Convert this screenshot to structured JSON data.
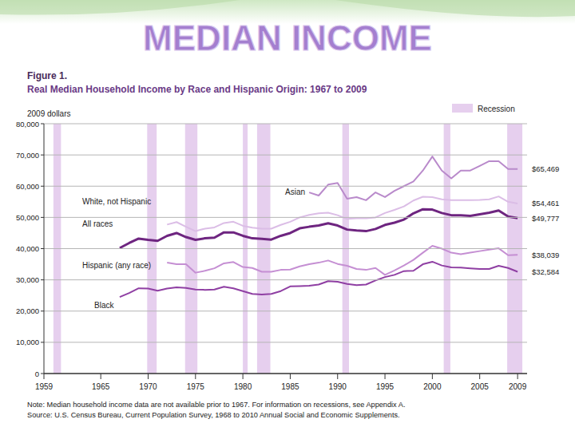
{
  "slide": {
    "title": "MEDIAN INCOME"
  },
  "chart_data": {
    "type": "line",
    "figure_label": "Figure 1.",
    "title": "Real Median Household Income by Race and Hispanic Origin: 1967 to 2009",
    "ylabel": "2009 dollars",
    "notes": [
      "Note: Median household income data are not available prior to 1967. For information on recessions, see Appendix A.",
      "Source: U.S. Census Bureau, Current Population Survey, 1968 to 2010 Annual Social and Economic Supplements."
    ],
    "grid": true,
    "legend": "upper right",
    "xlim": [
      1959,
      2010
    ],
    "xticks": [
      1959,
      1965,
      1970,
      1975,
      1980,
      1985,
      1990,
      1995,
      2000,
      2005,
      2009
    ],
    "ylim": [
      0,
      80000
    ],
    "yticks": [
      0,
      {
        "value": 10000,
        "label": "10,000"
      },
      {
        "value": 20000,
        "label": "20,000"
      },
      {
        "value": 30000,
        "label": "30,000"
      },
      {
        "value": 40000,
        "label": "40,000"
      },
      {
        "value": 50000,
        "label": "50,000"
      },
      {
        "value": 60000,
        "label": "60,000"
      },
      {
        "value": 70000,
        "label": "70,000"
      },
      {
        "value": 80000,
        "label": "80,000"
      }
    ],
    "recessions": {
      "label": "Recession",
      "color": "#e6cfee",
      "periods": [
        [
          1960,
          1960.8
        ],
        [
          1969.9,
          1970.9
        ],
        [
          1973.9,
          1975.2
        ],
        [
          1980,
          1980.5
        ],
        [
          1981.5,
          1982.9
        ],
        [
          1990.5,
          1991.2
        ],
        [
          2001.2,
          2001.9
        ],
        [
          2007.9,
          2009.5
        ]
      ]
    },
    "x": [
      1967,
      1968,
      1969,
      1970,
      1971,
      1972,
      1973,
      1974,
      1975,
      1976,
      1977,
      1978,
      1979,
      1980,
      1981,
      1982,
      1983,
      1984,
      1985,
      1986,
      1987,
      1988,
      1989,
      1990,
      1991,
      1992,
      1993,
      1994,
      1995,
      1996,
      1997,
      1998,
      1999,
      2000,
      2001,
      2002,
      2003,
      2004,
      2005,
      2006,
      2007,
      2008,
      2009
    ],
    "series": [
      {
        "name": "Asian",
        "color": "#b98acb",
        "end_label": "$65,469",
        "values": [
          null,
          null,
          null,
          null,
          null,
          null,
          null,
          null,
          null,
          null,
          null,
          null,
          null,
          null,
          null,
          null,
          null,
          null,
          null,
          null,
          58000,
          57000,
          60500,
          61000,
          56000,
          56500,
          55500,
          58000,
          56500,
          58500,
          60000,
          61500,
          65000,
          69500,
          65000,
          62500,
          65000,
          65000,
          66500,
          68000,
          68000,
          65500,
          65469
        ]
      },
      {
        "name": "White, not Hispanic",
        "color": "#dbbde6",
        "end_label": "$54,461",
        "values": [
          null,
          null,
          null,
          null,
          null,
          47700,
          48500,
          47000,
          45600,
          46400,
          46800,
          48200,
          48600,
          47300,
          46700,
          46400,
          46400,
          47600,
          48600,
          50000,
          50800,
          51300,
          51500,
          50700,
          49500,
          49700,
          49700,
          50000,
          51400,
          52400,
          53500,
          55400,
          56600,
          56500,
          55800,
          55500,
          55500,
          55500,
          55600,
          55800,
          56700,
          55000,
          54461
        ]
      },
      {
        "name": "All races",
        "color": "#6e2580",
        "end_label": "$49,777",
        "values": [
          40200,
          41800,
          43200,
          42800,
          42500,
          44100,
          45000,
          43700,
          42800,
          43300,
          43500,
          45200,
          45200,
          44100,
          43300,
          43100,
          42900,
          44100,
          45000,
          46500,
          47000,
          47400,
          48100,
          47400,
          46100,
          45800,
          45600,
          46300,
          47600,
          48300,
          49300,
          51300,
          52600,
          52500,
          51400,
          50700,
          50700,
          50500,
          51000,
          51500,
          52200,
          50300,
          49777
        ]
      },
      {
        "name": "Hispanic (any race)",
        "color": "#c58fd3",
        "end_label": "$38,039",
        "values": [
          null,
          null,
          null,
          null,
          null,
          35500,
          35000,
          35000,
          32300,
          32900,
          33700,
          35300,
          35700,
          34100,
          33800,
          32600,
          32600,
          33200,
          33300,
          34300,
          35000,
          35500,
          36200,
          35100,
          34500,
          33500,
          33200,
          33800,
          31600,
          33000,
          34600,
          36400,
          38700,
          40900,
          40000,
          38700,
          38200,
          38700,
          39200,
          39700,
          40100,
          37900,
          38039
        ]
      },
      {
        "name": "Black",
        "color": "#8f3fa3",
        "end_label": "$32,584",
        "values": [
          24500,
          25800,
          27300,
          27200,
          26500,
          27200,
          27600,
          27400,
          26900,
          26800,
          26900,
          27800,
          27300,
          26400,
          25500,
          25300,
          25500,
          26400,
          27900,
          28000,
          28100,
          28500,
          29600,
          29400,
          28700,
          28300,
          28500,
          29800,
          30900,
          31600,
          32800,
          32900,
          35000,
          35800,
          34600,
          34000,
          33900,
          33700,
          33500,
          33500,
          34500,
          33800,
          32584
        ]
      }
    ]
  }
}
